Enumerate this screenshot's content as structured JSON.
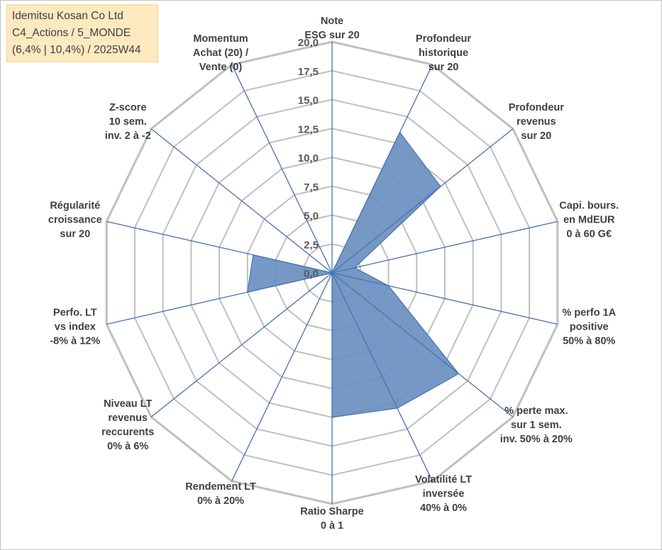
{
  "info": {
    "line1": "Idemitsu Kosan Co Ltd",
    "line2": "C4_Actions / 5_MONDE",
    "line3": "(6,4% | 10,4%) / 2025W44"
  },
  "chart_data": {
    "type": "radar",
    "title": "",
    "rmin": 0,
    "rmax": 20,
    "ticks": [
      "0,0",
      "2,5",
      "5,0",
      "7,5",
      "10,0",
      "12,5",
      "15,0",
      "17,5",
      "20,0"
    ],
    "grid": true,
    "axes": [
      [
        "Note",
        "ESG sur 20"
      ],
      [
        "Profondeur",
        "historique",
        "sur 20"
      ],
      [
        "Profondeur",
        "revenus",
        "sur 20"
      ],
      [
        "Capi. bours.",
        "en MdEUR",
        "0 à 60 G€"
      ],
      [
        "% perfo 1A",
        "positive",
        "50% à 80%"
      ],
      [
        "% perte max.",
        "sur 1 sem.",
        "inv. 50% à 20%"
      ],
      [
        "Volatilité LT",
        "inversée",
        "40% à 0%"
      ],
      [
        "Ratio Sharpe",
        "0 à 1"
      ],
      [
        "Rendement LT",
        "0% à 20%"
      ],
      [
        "Niveau LT",
        "revenus",
        "reccurents",
        "0% à 6%"
      ],
      [
        "Perfo. LT",
        "vs index",
        "-8% à 12%"
      ],
      [
        "Régularité",
        "croissance",
        "sur 20"
      ],
      [
        "Z-score",
        "10 sem.",
        "inv. 2 à -2"
      ],
      [
        "Momentum",
        "Achat (20) /",
        "Vente (0)"
      ]
    ],
    "series": [
      {
        "values": [
          0,
          13.5,
          12.0,
          2.0,
          5.0,
          14.0,
          13.0,
          12.5,
          0,
          0,
          7.5,
          7.0,
          0,
          0
        ],
        "color": "#6a8fc0",
        "edge": "#4a72b0"
      }
    ],
    "grid_color": "#bfbfbf",
    "spoke_color": "#4a72b0"
  }
}
